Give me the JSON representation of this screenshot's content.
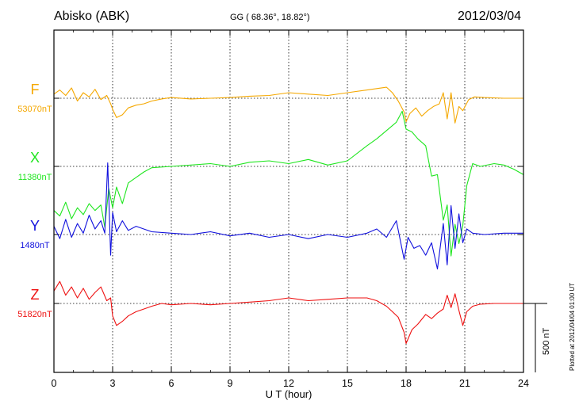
{
  "header": {
    "station": "Abisko (ABK)",
    "coords": "GG ( 68.36°,  18.82°)",
    "date": "2012/03/04"
  },
  "footer": {
    "plotted": "Plotted at 2012/04/04 01:00 UT",
    "scale": "500 nT"
  },
  "chart_data": {
    "type": "line",
    "title": "Abisko (ABK)",
    "xlabel": "U T (hour)",
    "ylabel": "",
    "xlim": [
      0,
      24
    ],
    "xticks": [
      0,
      3,
      6,
      9,
      12,
      15,
      18,
      21,
      24
    ],
    "grid": true,
    "scale_bar_nT": 500,
    "series": [
      {
        "name": "F",
        "baseline_label": "53070nT",
        "baseline_nT": 53070,
        "color": "#f5a800",
        "x": [
          0,
          0.3,
          0.6,
          0.9,
          1.2,
          1.5,
          1.8,
          2.1,
          2.4,
          2.7,
          2.9,
          3.0,
          3.2,
          3.5,
          3.8,
          4.2,
          4.6,
          5.0,
          5.5,
          6.0,
          7.0,
          8.0,
          9.0,
          10.0,
          11.0,
          12.0,
          13.0,
          14.0,
          15.0,
          16.0,
          16.5,
          17.0,
          17.3,
          17.6,
          17.9,
          18.0,
          18.2,
          18.5,
          18.8,
          19.1,
          19.4,
          19.7,
          19.9,
          20.1,
          20.3,
          20.5,
          20.7,
          20.9,
          21.2,
          21.5,
          22.0,
          23.0,
          24.0
        ],
        "values": [
          30,
          60,
          20,
          75,
          -20,
          40,
          10,
          65,
          -10,
          20,
          -40,
          -80,
          -140,
          -120,
          -70,
          -50,
          -40,
          -20,
          -5,
          5,
          -5,
          0,
          5,
          15,
          20,
          40,
          30,
          20,
          40,
          60,
          70,
          80,
          40,
          -20,
          -100,
          -170,
          -110,
          -70,
          -130,
          -90,
          -60,
          -40,
          40,
          -150,
          40,
          -180,
          -60,
          -90,
          -10,
          10,
          5,
          0,
          0
        ]
      },
      {
        "name": "X",
        "baseline_label": "11380nT",
        "baseline_nT": 11380,
        "color": "#1ee61e",
        "x": [
          0,
          0.3,
          0.6,
          0.9,
          1.2,
          1.5,
          1.8,
          2.1,
          2.4,
          2.6,
          2.8,
          3.0,
          3.2,
          3.5,
          3.8,
          4.2,
          4.6,
          5.0,
          6.0,
          7.0,
          8.0,
          9.0,
          10.0,
          11.0,
          12.0,
          13.0,
          14.0,
          15.0,
          16.0,
          16.5,
          17.0,
          17.5,
          17.8,
          18.0,
          18.3,
          18.6,
          19.0,
          19.3,
          19.6,
          19.9,
          20.1,
          20.3,
          20.5,
          20.7,
          20.9,
          21.1,
          21.4,
          21.8,
          22.5,
          23.0,
          23.5,
          24.0
        ],
        "values": [
          -320,
          -360,
          -260,
          -380,
          -300,
          -350,
          -270,
          -320,
          -280,
          -440,
          -160,
          -300,
          -150,
          -270,
          -120,
          -80,
          -40,
          -10,
          0,
          10,
          20,
          0,
          30,
          40,
          20,
          50,
          10,
          40,
          150,
          200,
          260,
          320,
          400,
          270,
          250,
          200,
          150,
          -70,
          -60,
          -390,
          -280,
          -650,
          -420,
          -560,
          -430,
          -140,
          20,
          0,
          20,
          10,
          -20,
          -60
        ]
      },
      {
        "name": "Y",
        "baseline_label": "1480nT",
        "baseline_nT": 1480,
        "color": "#1010dd",
        "x": [
          0,
          0.3,
          0.6,
          0.9,
          1.2,
          1.5,
          1.8,
          2.1,
          2.4,
          2.6,
          2.75,
          2.9,
          3.0,
          3.2,
          3.5,
          3.8,
          4.2,
          5.0,
          6.0,
          7.0,
          8.0,
          9.0,
          10.0,
          11.0,
          12.0,
          13.0,
          14.0,
          15.0,
          16.0,
          16.5,
          17.0,
          17.5,
          17.9,
          18.1,
          18.4,
          18.7,
          19.0,
          19.3,
          19.6,
          19.9,
          20.1,
          20.3,
          20.5,
          20.7,
          20.9,
          21.1,
          21.4,
          22.0,
          23.0,
          24.0
        ],
        "values": [
          60,
          -30,
          110,
          -20,
          80,
          10,
          140,
          40,
          100,
          10,
          520,
          -150,
          160,
          20,
          100,
          30,
          60,
          20,
          10,
          0,
          20,
          -10,
          10,
          -20,
          0,
          -30,
          0,
          -20,
          10,
          40,
          -20,
          100,
          -180,
          -20,
          -100,
          -80,
          -150,
          -60,
          -250,
          80,
          -220,
          210,
          -100,
          150,
          -60,
          40,
          10,
          0,
          10,
          10
        ]
      },
      {
        "name": "Z",
        "baseline_label": "51820nT",
        "baseline_nT": 51820,
        "color": "#ee1111",
        "x": [
          0,
          0.3,
          0.6,
          0.9,
          1.2,
          1.5,
          1.8,
          2.1,
          2.4,
          2.7,
          2.9,
          3.0,
          3.2,
          3.5,
          3.8,
          4.2,
          4.6,
          5.0,
          5.5,
          6.0,
          7.0,
          8.0,
          9.0,
          10.0,
          11.0,
          12.0,
          13.0,
          14.0,
          15.0,
          16.0,
          16.5,
          17.0,
          17.3,
          17.6,
          17.9,
          18.0,
          18.3,
          18.6,
          19.0,
          19.3,
          19.6,
          19.9,
          20.1,
          20.3,
          20.5,
          20.7,
          20.9,
          21.1,
          21.4,
          21.8,
          22.5,
          24.0
        ],
        "values": [
          90,
          160,
          60,
          120,
          40,
          110,
          30,
          80,
          120,
          20,
          40,
          -90,
          -160,
          -130,
          -90,
          -60,
          -40,
          -20,
          0,
          -10,
          0,
          -10,
          0,
          10,
          20,
          40,
          20,
          30,
          40,
          40,
          20,
          -20,
          -60,
          -100,
          -210,
          -290,
          -190,
          -150,
          -80,
          -110,
          -70,
          -40,
          60,
          -30,
          70,
          -50,
          -160,
          -60,
          -20,
          -5,
          0,
          0
        ]
      }
    ]
  }
}
